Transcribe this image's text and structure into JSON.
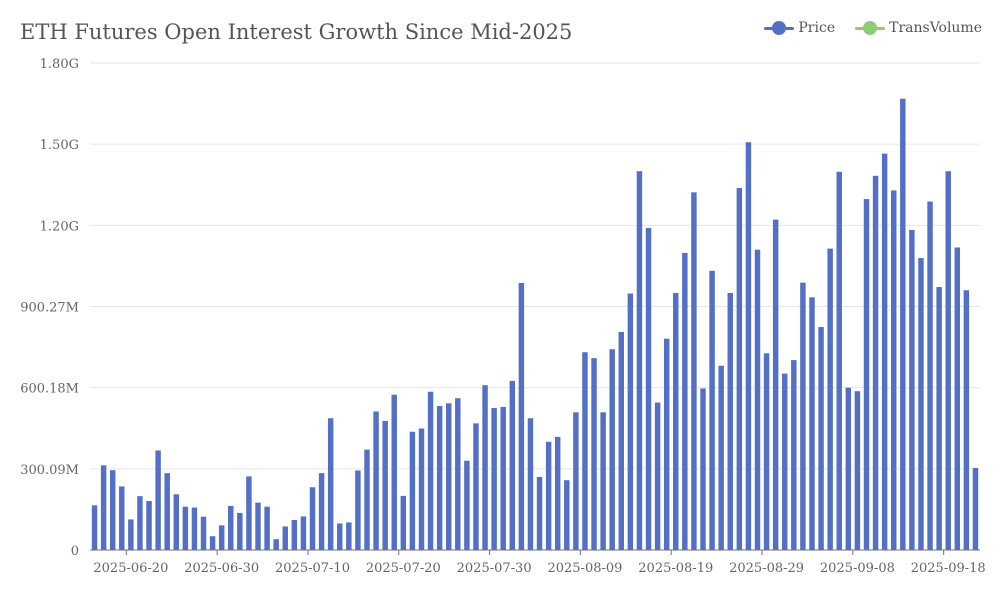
{
  "title": "ETH Futures Open Interest Growth Since Mid-2025",
  "legend": {
    "items": [
      {
        "label": "Price",
        "color": "#5470c6"
      },
      {
        "label": "TransVolume",
        "color": "#91cc75"
      }
    ]
  },
  "chart_data": {
    "type": "bar",
    "title": "ETH Futures Open Interest Growth Since Mid-2025",
    "xlabel": "",
    "ylabel": "",
    "ylim": [
      0,
      1800000000
    ],
    "y_ticks": [
      "0",
      "300.09M",
      "600.18M",
      "900.27M",
      "1.20G",
      "1.50G",
      "1.80G"
    ],
    "x_ticks": [
      "2025-06-20",
      "2025-06-30",
      "2025-07-10",
      "2025-07-20",
      "2025-07-30",
      "2025-08-09",
      "2025-08-19",
      "2025-08-29",
      "2025-09-08",
      "2025-09-18"
    ],
    "grid": true,
    "legend_position": "top-right",
    "bar_color": "#5470c6",
    "x_start": "2025-06-16",
    "x_end": "2025-09-18",
    "series": [
      {
        "name": "Price",
        "values": [
          165000000,
          313000000,
          295000000,
          235000000,
          113000000,
          199000000,
          181000000,
          368000000,
          284000000,
          206000000,
          160000000,
          157000000,
          123000000,
          51000000,
          91000000,
          163000000,
          137000000,
          272000000,
          175000000,
          160000000,
          40000000,
          87000000,
          111000000,
          124000000,
          232000000,
          284000000,
          487000000,
          98000000,
          102000000,
          294000000,
          371000000,
          512000000,
          477000000,
          574000000,
          200000000,
          437000000,
          449000000,
          585000000,
          532000000,
          542000000,
          561000000,
          330000000,
          468000000,
          609000000,
          525000000,
          529000000,
          625000000,
          987000000,
          487000000,
          270000000,
          400000000,
          418000000,
          258000000,
          509000000,
          731000000,
          709000000,
          509000000,
          742000000,
          806000000,
          948000000,
          1400000000,
          1190000000,
          545000000,
          781000000,
          950000000,
          1098000000,
          1322000000,
          597000000,
          1032000000,
          681000000,
          950000000,
          1338000000,
          1507000000,
          1110000000,
          727000000,
          1221000000,
          652000000,
          702000000,
          988000000,
          934000000,
          824000000,
          1114000000,
          1398000000,
          600000000,
          587000000,
          1297000000,
          1383000000,
          1465000000,
          1329000000,
          1668000000,
          1183000000,
          1079000000,
          1288000000,
          972000000,
          1400000000,
          1118000000,
          960000000,
          303000000
        ]
      }
    ]
  }
}
